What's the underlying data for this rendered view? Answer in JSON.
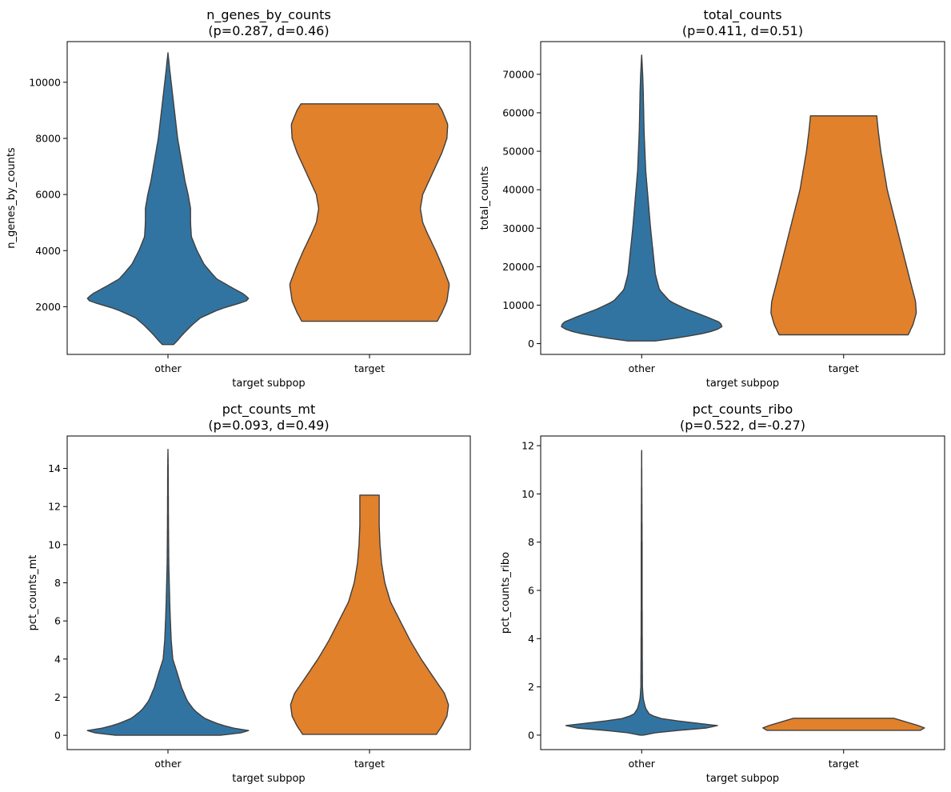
{
  "palette": {
    "other": "#3274a1",
    "target": "#e1812c"
  },
  "chart_data": [
    {
      "type": "violin",
      "title_line1": "n_genes_by_counts",
      "title_line2": "(p=0.287, d=0.46)",
      "xlabel": "target subpop",
      "ylabel": "n_genes_by_counts",
      "categories": [
        "other",
        "target"
      ],
      "ylim": [
        300,
        11450
      ],
      "yticks": [
        2000,
        4000,
        6000,
        8000,
        10000
      ],
      "ytick_labels": [
        "2000",
        "4000",
        "6000",
        "8000",
        "10000"
      ],
      "series": [
        {
          "category": "other",
          "cut": [
            650,
            11050
          ],
          "max_half_width": 0.4,
          "profile": [
            [
              650,
              0.07
            ],
            [
              800,
              0.12
            ],
            [
              1000,
              0.18
            ],
            [
              1300,
              0.28
            ],
            [
              1600,
              0.4
            ],
            [
              1900,
              0.63
            ],
            [
              2100,
              0.86
            ],
            [
              2200,
              0.97
            ],
            [
              2300,
              1.0
            ],
            [
              2450,
              0.94
            ],
            [
              2700,
              0.78
            ],
            [
              3000,
              0.6
            ],
            [
              3500,
              0.45
            ],
            [
              4000,
              0.36
            ],
            [
              4500,
              0.29
            ],
            [
              5000,
              0.28
            ],
            [
              5500,
              0.28
            ],
            [
              6000,
              0.25
            ],
            [
              6500,
              0.21
            ],
            [
              7000,
              0.18
            ],
            [
              7500,
              0.15
            ],
            [
              8000,
              0.12
            ],
            [
              8500,
              0.1
            ],
            [
              9000,
              0.08
            ],
            [
              9500,
              0.06
            ],
            [
              10000,
              0.04
            ],
            [
              10500,
              0.02
            ],
            [
              11050,
              0.0
            ]
          ]
        },
        {
          "category": "target",
          "cut": [
            1480,
            9230
          ],
          "max_half_width": 0.4,
          "profile": [
            [
              1480,
              0.84
            ],
            [
              1800,
              0.9
            ],
            [
              2200,
              0.96
            ],
            [
              2800,
              0.99
            ],
            [
              3400,
              0.91
            ],
            [
              4000,
              0.82
            ],
            [
              4600,
              0.72
            ],
            [
              5000,
              0.66
            ],
            [
              5500,
              0.63
            ],
            [
              6000,
              0.66
            ],
            [
              6500,
              0.74
            ],
            [
              7000,
              0.82
            ],
            [
              7500,
              0.9
            ],
            [
              8000,
              0.96
            ],
            [
              8500,
              0.97
            ],
            [
              9000,
              0.9
            ],
            [
              9230,
              0.85
            ]
          ]
        }
      ]
    },
    {
      "type": "violin",
      "title_line1": "total_counts",
      "title_line2": "(p=0.411, d=0.51)",
      "xlabel": "target subpop",
      "ylabel": "total_counts",
      "categories": [
        "other",
        "target"
      ],
      "ylim": [
        -2800,
        78500
      ],
      "yticks": [
        0,
        10000,
        20000,
        30000,
        40000,
        50000,
        60000,
        70000
      ],
      "ytick_labels": [
        "0",
        "10000",
        "20000",
        "30000",
        "40000",
        "50000",
        "60000",
        "70000"
      ],
      "series": [
        {
          "category": "other",
          "cut": [
            700,
            75000
          ],
          "max_half_width": 0.4,
          "profile": [
            [
              700,
              0.17
            ],
            [
              1500,
              0.45
            ],
            [
              2500,
              0.73
            ],
            [
              3500,
              0.92
            ],
            [
              4500,
              1.0
            ],
            [
              5500,
              0.97
            ],
            [
              7000,
              0.8
            ],
            [
              9000,
              0.55
            ],
            [
              11000,
              0.35
            ],
            [
              14000,
              0.22
            ],
            [
              18000,
              0.17
            ],
            [
              22000,
              0.15
            ],
            [
              26000,
              0.13
            ],
            [
              30000,
              0.11
            ],
            [
              35000,
              0.09
            ],
            [
              40000,
              0.07
            ],
            [
              45000,
              0.05
            ],
            [
              50000,
              0.04
            ],
            [
              55000,
              0.03
            ],
            [
              60000,
              0.025
            ],
            [
              65000,
              0.02
            ],
            [
              70000,
              0.012
            ],
            [
              75000,
              0.0
            ]
          ]
        },
        {
          "category": "target",
          "cut": [
            2300,
            59200
          ],
          "max_half_width": 0.4,
          "profile": [
            [
              2300,
              0.8
            ],
            [
              5000,
              0.86
            ],
            [
              8000,
              0.9
            ],
            [
              11000,
              0.89
            ],
            [
              15000,
              0.84
            ],
            [
              20000,
              0.78
            ],
            [
              25000,
              0.72
            ],
            [
              30000,
              0.66
            ],
            [
              35000,
              0.6
            ],
            [
              40000,
              0.54
            ],
            [
              45000,
              0.5
            ],
            [
              50000,
              0.46
            ],
            [
              55000,
              0.43
            ],
            [
              59200,
              0.41
            ]
          ]
        }
      ]
    },
    {
      "type": "violin",
      "title_line1": "pct_counts_mt",
      "title_line2": "(p=0.093, d=0.49)",
      "xlabel": "target subpop",
      "ylabel": "pct_counts_mt",
      "categories": [
        "other",
        "target"
      ],
      "ylim": [
        -0.75,
        15.7
      ],
      "yticks": [
        0,
        2,
        4,
        6,
        8,
        10,
        12,
        14
      ],
      "ytick_labels": [
        "0",
        "2",
        "4",
        "6",
        "8",
        "10",
        "12",
        "14"
      ],
      "series": [
        {
          "category": "other",
          "cut": [
            0,
            15
          ],
          "max_half_width": 0.4,
          "profile": [
            [
              0,
              0.65
            ],
            [
              0.12,
              0.9
            ],
            [
              0.25,
              1.0
            ],
            [
              0.4,
              0.78
            ],
            [
              0.6,
              0.62
            ],
            [
              0.9,
              0.45
            ],
            [
              1.3,
              0.33
            ],
            [
              1.8,
              0.24
            ],
            [
              2.5,
              0.17
            ],
            [
              3.2,
              0.12
            ],
            [
              4,
              0.06
            ],
            [
              5,
              0.04
            ],
            [
              6,
              0.03
            ],
            [
              7,
              0.022
            ],
            [
              8,
              0.016
            ],
            [
              9,
              0.01
            ],
            [
              10,
              0.008
            ],
            [
              11,
              0.006
            ],
            [
              12,
              0.005
            ],
            [
              13,
              0.004
            ],
            [
              14,
              0.003
            ],
            [
              15,
              0.0
            ]
          ]
        },
        {
          "category": "target",
          "cut": [
            0.05,
            12.6
          ],
          "max_half_width": 0.4,
          "profile": [
            [
              0.05,
              0.83
            ],
            [
              0.5,
              0.9
            ],
            [
              1,
              0.96
            ],
            [
              1.6,
              0.98
            ],
            [
              2.2,
              0.93
            ],
            [
              3,
              0.8
            ],
            [
              4,
              0.64
            ],
            [
              5,
              0.5
            ],
            [
              6,
              0.38
            ],
            [
              7,
              0.26
            ],
            [
              8,
              0.19
            ],
            [
              9,
              0.15
            ],
            [
              10,
              0.13
            ],
            [
              11,
              0.12
            ],
            [
              12,
              0.12
            ],
            [
              12.6,
              0.12
            ]
          ]
        }
      ]
    },
    {
      "type": "violin",
      "title_line1": "pct_counts_ribo",
      "title_line2": "(p=0.522, d=-0.27)",
      "xlabel": "target subpop",
      "ylabel": "pct_counts_ribo",
      "categories": [
        "other",
        "target"
      ],
      "ylim": [
        -0.6,
        12.4
      ],
      "yticks": [
        0,
        2,
        4,
        6,
        8,
        10,
        12
      ],
      "ytick_labels": [
        "0",
        "2",
        "4",
        "6",
        "8",
        "10",
        "12"
      ],
      "series": [
        {
          "category": "other",
          "cut": [
            0,
            11.8
          ],
          "max_half_width": 0.4,
          "profile": [
            [
              0,
              0.02
            ],
            [
              0.08,
              0.12
            ],
            [
              0.2,
              0.46
            ],
            [
              0.3,
              0.82
            ],
            [
              0.35,
              1.0
            ],
            [
              0.42,
              0.9
            ],
            [
              0.55,
              0.52
            ],
            [
              0.7,
              0.22
            ],
            [
              0.85,
              0.1
            ],
            [
              1.1,
              0.05
            ],
            [
              1.5,
              0.02
            ],
            [
              2,
              0.01
            ],
            [
              3,
              0.008
            ],
            [
              5,
              0.006
            ],
            [
              8,
              0.005
            ],
            [
              11.8,
              0.0
            ]
          ]
        },
        {
          "category": "target",
          "cut": [
            0.2,
            0.7
          ],
          "max_half_width": 0.4,
          "profile": [
            [
              0.2,
              0.95
            ],
            [
              0.3,
              1.0
            ],
            [
              0.4,
              0.92
            ],
            [
              0.5,
              0.82
            ],
            [
              0.6,
              0.72
            ],
            [
              0.7,
              0.62
            ]
          ]
        }
      ]
    }
  ]
}
